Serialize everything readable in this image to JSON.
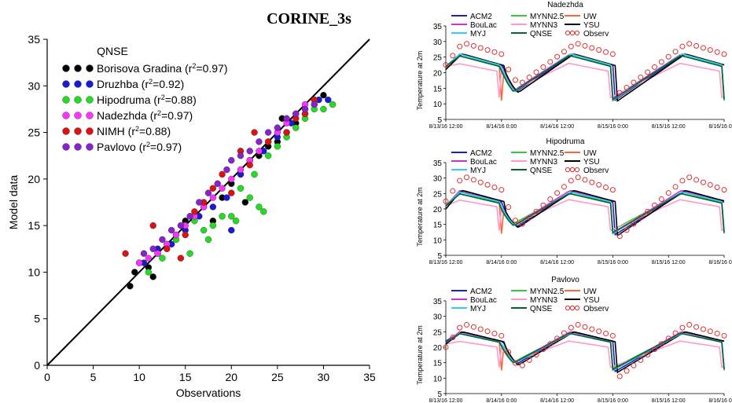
{
  "figure_title": "CORINE_3s",
  "colors": {
    "ACM2": "#1f1fbf",
    "MYNN2.5": "#33cc33",
    "UW": "#ff6633",
    "BouLac": "#cc33cc",
    "MYNN3": "#ff99cc",
    "YSU": "#000000",
    "MYJ": "#33ccff",
    "QNSE": "#006633",
    "Observ": "#e03030",
    "Borisova Gradina": "#000000",
    "Druzhba": "#1a1ad6",
    "Hipodruma": "#22dd22",
    "Nadezhda": "#ff33ff",
    "NIMH": "#dd1111",
    "Pavlovo": "#8822cc"
  },
  "chart_data": [
    {
      "type": "scatter",
      "title": "QNSE",
      "xlabel": "Observations",
      "ylabel": "Model data",
      "xlim": [
        0,
        35
      ],
      "ylim": [
        0,
        35
      ],
      "xticks": [
        "0",
        "5",
        "10",
        "15",
        "20",
        "25",
        "30",
        "35"
      ],
      "yticks": [
        "0",
        "5",
        "10",
        "15",
        "20",
        "25",
        "30",
        "35"
      ],
      "reference_line": "1:1",
      "legend": "top-left",
      "series": [
        {
          "name": "Borisova Gradina",
          "r2": "0.97",
          "color_key": "Borisova Gradina",
          "points": [
            [
              9,
              8.5
            ],
            [
              9.5,
              10
            ],
            [
              10,
              11
            ],
            [
              11,
              10.5
            ],
            [
              11.5,
              9.5
            ],
            [
              12,
              12
            ],
            [
              13,
              13
            ],
            [
              14,
              14
            ],
            [
              15,
              15.5
            ],
            [
              16,
              16
            ],
            [
              17,
              17
            ],
            [
              18,
              15.5
            ],
            [
              19,
              18
            ],
            [
              20,
              19.5
            ],
            [
              21,
              20.5
            ],
            [
              21.5,
              17.5
            ],
            [
              22,
              22
            ],
            [
              23,
              22.5
            ],
            [
              24,
              23.5
            ],
            [
              25,
              24
            ],
            [
              25.5,
              26.5
            ],
            [
              26,
              25
            ],
            [
              27,
              26
            ],
            [
              28,
              27
            ],
            [
              29,
              28
            ],
            [
              30,
              29
            ]
          ]
        },
        {
          "name": "Druzhba",
          "r2": "0.92",
          "color_key": "Druzhba",
          "points": [
            [
              10.5,
              11
            ],
            [
              12,
              12.5
            ],
            [
              13.5,
              13
            ],
            [
              15,
              14.5
            ],
            [
              16.5,
              16
            ],
            [
              18,
              17
            ],
            [
              19.5,
              18
            ],
            [
              20,
              14.5
            ],
            [
              21,
              20.5
            ],
            [
              22,
              22
            ],
            [
              23.5,
              23
            ],
            [
              25,
              24.5
            ],
            [
              26.5,
              26
            ],
            [
              28,
              27.5
            ],
            [
              29.5,
              28.5
            ],
            [
              30.5,
              28.5
            ]
          ]
        },
        {
          "name": "Hipodruma",
          "r2": "0.88",
          "color_key": "Hipodruma",
          "points": [
            [
              11,
              10
            ],
            [
              12.5,
              11.5
            ],
            [
              14,
              13.5
            ],
            [
              15.5,
              12
            ],
            [
              16,
              15.5
            ],
            [
              17,
              14.5
            ],
            [
              17.5,
              13.5
            ],
            [
              18,
              15
            ],
            [
              19,
              16
            ],
            [
              20,
              16
            ],
            [
              20.5,
              15.5
            ],
            [
              21,
              19
            ],
            [
              22,
              18
            ],
            [
              22.5,
              20.5
            ],
            [
              23,
              17
            ],
            [
              23.5,
              16.5
            ],
            [
              24,
              22.5
            ],
            [
              25,
              23.5
            ],
            [
              26,
              24.5
            ],
            [
              27,
              25.5
            ],
            [
              28,
              26.5
            ],
            [
              29,
              27.5
            ],
            [
              30,
              27.5
            ],
            [
              31,
              28
            ]
          ]
        },
        {
          "name": "Nadezhda",
          "r2": "0.97",
          "color_key": "Nadezhda",
          "points": [
            [
              10,
              11
            ],
            [
              11,
              11.5
            ],
            [
              12,
              12
            ],
            [
              13,
              13
            ],
            [
              14,
              14
            ],
            [
              15,
              15
            ],
            [
              16,
              16
            ],
            [
              17,
              17
            ],
            [
              18,
              18
            ],
            [
              19,
              19
            ],
            [
              20,
              20
            ],
            [
              21,
              21
            ],
            [
              22,
              22
            ],
            [
              23,
              23
            ],
            [
              24,
              24
            ],
            [
              25,
              25
            ],
            [
              26,
              26
            ],
            [
              27,
              27
            ],
            [
              28,
              28
            ],
            [
              29,
              28.5
            ]
          ]
        },
        {
          "name": "NIMH",
          "r2": "0.88",
          "color_key": "NIMH",
          "points": [
            [
              8.5,
              12
            ],
            [
              11.5,
              15
            ],
            [
              13,
              12.5
            ],
            [
              14.5,
              11.5
            ],
            [
              15,
              14
            ],
            [
              16,
              16.5
            ],
            [
              17,
              17.5
            ],
            [
              18,
              19
            ],
            [
              19,
              20.5
            ],
            [
              20,
              18.5
            ],
            [
              21,
              23
            ],
            [
              22,
              21.5
            ],
            [
              22.5,
              25
            ],
            [
              24,
              24
            ],
            [
              26,
              25
            ],
            [
              27,
              26.5
            ],
            [
              28,
              27
            ],
            [
              29,
              28.5
            ]
          ]
        },
        {
          "name": "Pavlovo",
          "r2": "0.97",
          "color_key": "Pavlovo",
          "points": [
            [
              10.5,
              12
            ],
            [
              11.5,
              12.5
            ],
            [
              12.5,
              13.5
            ],
            [
              13.5,
              14.5
            ],
            [
              14.5,
              15
            ],
            [
              15.5,
              16
            ],
            [
              16.5,
              17.5
            ],
            [
              17.5,
              18.5
            ],
            [
              18.5,
              19.5
            ],
            [
              19.5,
              21
            ],
            [
              20,
              22
            ],
            [
              21,
              22.5
            ],
            [
              22,
              23
            ],
            [
              23,
              24
            ],
            [
              24,
              25
            ],
            [
              25,
              25.5
            ],
            [
              26,
              26.5
            ],
            [
              27,
              27
            ],
            [
              28,
              27.5
            ],
            [
              29,
              28
            ]
          ]
        }
      ]
    },
    {
      "type": "line",
      "title": "Nadezhda",
      "ylabel": "Temperature at 2m",
      "ylim": [
        5,
        35
      ],
      "yticks": [
        "5",
        "10",
        "15",
        "20",
        "25",
        "30",
        "35"
      ],
      "xticks": [
        "8/13/16 12:00",
        "8/14/16 0:00",
        "8/14/16 12:00",
        "8/15/16 0:00",
        "8/15/16 12:00",
        "8/16/16 0:00"
      ],
      "xlim_hours": [
        0,
        60
      ],
      "legend": [
        "ACM2",
        "MYNN2.5",
        "UW",
        "BouLac",
        "MYNN3",
        "YSU",
        "MYJ",
        "QNSE",
        "Observ"
      ],
      "obs": {
        "tmin": 13,
        "tmax": 29.5,
        "start": 22.5,
        "end": 17.5
      },
      "models": {
        "ACM2": {
          "tmin": 11,
          "tmax": 26,
          "start": 22
        },
        "MYNN2.5": {
          "tmin": 11.5,
          "tmax": 25.5,
          "start": 22
        },
        "UW": {
          "tmin": 11,
          "tmax": 26,
          "start": 22
        },
        "BouLac": {
          "tmin": 11.5,
          "tmax": 26,
          "start": 22
        },
        "MYNN3": {
          "tmin": 12,
          "tmax": 23,
          "start": 22
        },
        "YSU": {
          "tmin": 10.5,
          "tmax": 26,
          "start": 21
        },
        "MYJ": {
          "tmin": 11,
          "tmax": 26,
          "start": 22
        },
        "QNSE": {
          "tmin": 11,
          "tmax": 25.5,
          "start": 22
        }
      }
    },
    {
      "type": "line",
      "title": "Hipodruma",
      "ylabel": "Temperature at 2m",
      "ylim": [
        5,
        35
      ],
      "yticks": [
        "5",
        "10",
        "15",
        "20",
        "25",
        "30",
        "35"
      ],
      "xticks": [
        "8/13/16 12:00",
        "8/14/16 0:00",
        "8/14/16 12:00",
        "8/15/16 0:00",
        "8/15/16 12:00",
        "8/16/16 0:00"
      ],
      "xlim_hours": [
        0,
        60
      ],
      "legend": [
        "ACM2",
        "MYNN2.5",
        "UW",
        "BouLac",
        "MYNN3",
        "YSU",
        "MYJ",
        "QNSE",
        "Observ"
      ],
      "obs": {
        "tmin": 10.5,
        "tmax": 30.5,
        "start": 22.5,
        "end": 16.5
      },
      "models": {
        "ACM2": {
          "tmin": 11.5,
          "tmax": 25.5,
          "start": 21
        },
        "MYNN2.5": {
          "tmin": 13,
          "tmax": 25,
          "start": 21
        },
        "UW": {
          "tmin": 12,
          "tmax": 25.5,
          "start": 21
        },
        "BouLac": {
          "tmin": 12,
          "tmax": 26,
          "start": 21
        },
        "MYNN3": {
          "tmin": 13,
          "tmax": 23,
          "start": 21
        },
        "YSU": {
          "tmin": 11,
          "tmax": 26,
          "start": 20
        },
        "MYJ": {
          "tmin": 12,
          "tmax": 25.5,
          "start": 21
        },
        "QNSE": {
          "tmin": 12,
          "tmax": 25,
          "start": 21
        }
      }
    },
    {
      "type": "line",
      "title": "Pavlovo",
      "ylabel": "Temperature at 2m",
      "ylim": [
        5,
        35
      ],
      "yticks": [
        "5",
        "10",
        "15",
        "20",
        "25",
        "30",
        "35"
      ],
      "xticks": [
        "8/13/16 12:00",
        "8/14/16 0:00",
        "8/14/16 12:00",
        "8/15/16 0:00",
        "8/15/16 12:00",
        "8/16/16 0:00"
      ],
      "xlim_hours": [
        0,
        60
      ],
      "legend": [
        "ACM2",
        "MYNN2.5",
        "UW",
        "BouLac",
        "MYNN3",
        "YSU",
        "MYJ",
        "QNSE",
        "Observ"
      ],
      "obs": {
        "tmin": 10,
        "tmax": 27.5,
        "start": 20,
        "end": 15.5
      },
      "models": {
        "ACM2": {
          "tmin": 12,
          "tmax": 25,
          "start": 22
        },
        "MYNN2.5": {
          "tmin": 13,
          "tmax": 24.5,
          "start": 21.5
        },
        "UW": {
          "tmin": 12.5,
          "tmax": 25,
          "start": 21.5
        },
        "BouLac": {
          "tmin": 12.5,
          "tmax": 25,
          "start": 21.5
        },
        "MYNN3": {
          "tmin": 13.5,
          "tmax": 22,
          "start": 21
        },
        "YSU": {
          "tmin": 11.5,
          "tmax": 25,
          "start": 21
        },
        "MYJ": {
          "tmin": 12.5,
          "tmax": 24.5,
          "start": 21.5
        },
        "QNSE": {
          "tmin": 12.5,
          "tmax": 24.5,
          "start": 21.5
        }
      }
    }
  ]
}
